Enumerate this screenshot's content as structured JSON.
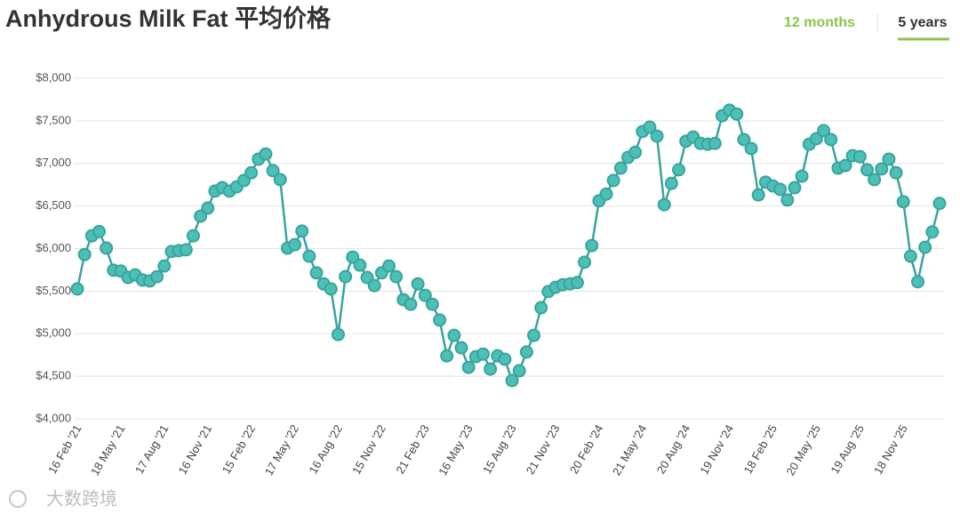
{
  "title": "Anhydrous Milk Fat 平均价格",
  "tabs": [
    "12 months",
    "5 years"
  ],
  "watermark": "大数跨境",
  "chart_data": {
    "type": "line",
    "categories": [
      "16 Feb '21",
      null,
      null,
      null,
      null,
      null,
      "18 May '21",
      null,
      null,
      null,
      null,
      null,
      "17 Aug '21",
      null,
      null,
      null,
      null,
      null,
      "16 Nov '21",
      null,
      null,
      null,
      null,
      null,
      "15 Feb '22",
      null,
      null,
      null,
      null,
      null,
      "17 May '22",
      null,
      null,
      null,
      null,
      null,
      "16 Aug '22",
      null,
      null,
      null,
      null,
      null,
      "15 Nov '22",
      null,
      null,
      null,
      null,
      null,
      "21 Feb '23",
      null,
      null,
      null,
      null,
      null,
      "16 May '23",
      null,
      null,
      null,
      null,
      null,
      "15 Aug '23",
      null,
      null,
      null,
      null,
      null,
      "21 Nov '23",
      null,
      null,
      null,
      null,
      null,
      "20 Feb '24",
      null,
      null,
      null,
      null,
      null,
      "21 May '24",
      null,
      null,
      null,
      null,
      null,
      "20 Aug '24",
      null,
      null,
      null,
      null,
      null,
      "19 Nov '24",
      null,
      null,
      null,
      null,
      null,
      "18 Feb '25",
      null,
      null,
      null,
      null,
      null,
      "20 May '25",
      null,
      null,
      null,
      null,
      null,
      "19 Aug '25",
      null,
      null,
      null,
      null,
      null,
      "18 Nov '25",
      null,
      null,
      null,
      null,
      null
    ],
    "series": [
      {
        "color": "#3aa39c",
        "values": [
          5525,
          5930,
          6150,
          6200,
          6005,
          5745,
          5735,
          5660,
          5690,
          5630,
          5620,
          5670,
          5795,
          5965,
          5975,
          5985,
          6150,
          6380,
          6475,
          6675,
          6715,
          6675,
          6725,
          6800,
          6890,
          7050,
          7110,
          6915,
          6810,
          6005,
          6045,
          6205,
          5910,
          5715,
          5585,
          5525,
          4990,
          5670,
          5900,
          5805,
          5660,
          5565,
          5715,
          5795,
          5670,
          5400,
          5345,
          5585,
          5450,
          5345,
          5160,
          4740,
          4980,
          4835,
          4605,
          4730,
          4760,
          4585,
          4740,
          4700,
          4450,
          4565,
          4785,
          4980,
          5305,
          5495,
          5545,
          5575,
          5585,
          5600,
          5840,
          6035,
          6560,
          6640,
          6800,
          6945,
          7070,
          7130,
          7375,
          7425,
          7320,
          6515,
          6765,
          6925,
          7260,
          7310,
          7235,
          7225,
          7235,
          7560,
          7625,
          7580,
          7280,
          7175,
          6630,
          6780,
          6735,
          6695,
          6570,
          6715,
          6850,
          7225,
          7290,
          7385,
          7280,
          6945,
          6975,
          7090,
          7080,
          6925,
          6810,
          6935,
          7050,
          6890,
          6550,
          5910,
          5610,
          6015,
          6195,
          6530
        ]
      }
    ],
    "ylim": [
      4000,
      8000
    ],
    "yticks": [
      {
        "value": 4000,
        "label": "$4,000"
      },
      {
        "value": 4500,
        "label": "$4,500"
      },
      {
        "value": 5000,
        "label": "$5,000"
      },
      {
        "value": 5500,
        "label": "$5,500"
      },
      {
        "value": 6000,
        "label": "$6,000"
      },
      {
        "value": 6500,
        "label": "$6,500"
      },
      {
        "value": 7000,
        "label": "$7,000"
      },
      {
        "value": 7500,
        "label": "$7,500"
      },
      {
        "value": 8000,
        "label": "$8,000"
      }
    ],
    "grid": true
  }
}
